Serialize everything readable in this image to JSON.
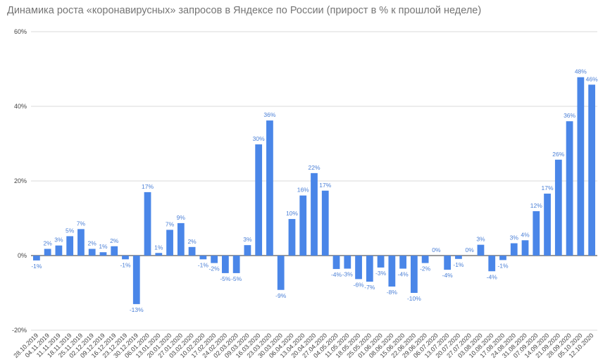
{
  "chart_data": {
    "type": "bar",
    "title": "Динамика роста «коронавирусных» запросов в Яндексе по России (прирост в % к прошлой неделе)",
    "xlabel": "",
    "ylabel": "",
    "ylim": [
      -20,
      60
    ],
    "yticks": [
      -20,
      0,
      20,
      40,
      60
    ],
    "ytick_labels": [
      "-20%",
      "0%",
      "20%",
      "40%",
      "60%"
    ],
    "grid": true,
    "bar_color": "#4a86e8",
    "label_color": "#4a7fd6",
    "categories": [
      "28.10.2019",
      "04.11.2019",
      "11.11.2019",
      "18.11.2019",
      "25.11.2019",
      "02.12.2019",
      "09.12.2019",
      "16.12.2019",
      "23.12.2019",
      "30.12.2019",
      "06.01.2020",
      "13.01.2020",
      "20.01.2020",
      "27.01.2020",
      "03.02.2020",
      "10.02.2020",
      "17.02.2020",
      "24.02.2020",
      "02.03.2020",
      "09.03.2020",
      "16.03.2020",
      "23.03.2020",
      "30.03.2020",
      "06.04.2020",
      "13.04.2020",
      "20.04.2020",
      "27.04.2020",
      "04.05.2020",
      "11.05.2020",
      "18.05.2020",
      "25.05.2020",
      "01.06.2020",
      "08.06.2020",
      "15.06.2020",
      "22.06.2020",
      "29.06.2020",
      "06.07.2020",
      "13.07.2020",
      "20.07.2020",
      "27.07.2020",
      "03.08.2020",
      "10.08.2020",
      "17.08.2020",
      "24.08.2020",
      "31.08.2020",
      "07.09.2020",
      "14.09.2020",
      "21.09.2020",
      "28.09.2020",
      "05.10.2020",
      "12.10.2020"
    ],
    "values": [
      -1.3,
      1.8,
      2.7,
      5.2,
      7.1,
      1.8,
      0.9,
      2.5,
      -1.0,
      -13.0,
      17.0,
      0.7,
      6.9,
      8.7,
      2.3,
      -1.0,
      -2.0,
      -4.7,
      -4.7,
      2.8,
      29.8,
      36.2,
      -9.2,
      9.8,
      16.1,
      22.1,
      17.4,
      -3.6,
      -3.5,
      -6.3,
      -7.0,
      -3.2,
      -8.3,
      -3.5,
      -10.0,
      -2.0,
      0,
      -3.8,
      -0.9,
      0,
      2.9,
      -4.2,
      -1.2,
      3.3,
      4.1,
      11.9,
      16.6,
      25.7,
      36.0,
      47.8,
      45.8
    ],
    "data_labels": [
      "-1%",
      "2%",
      "3%",
      "5%",
      "7%",
      "2%",
      "1%",
      "2%",
      "-1%",
      "-13%",
      "17%",
      "1%",
      "7%",
      "9%",
      "2%",
      "-1%",
      "-2%",
      "-5%",
      "-5%",
      "3%",
      "30%",
      "36%",
      "-9%",
      "10%",
      "16%",
      "22%",
      "17%",
      "-4%",
      "-3%",
      "-6%",
      "-7%",
      "-3%",
      "-8%",
      "-4%",
      "-10%",
      "-2%",
      "0%",
      "-4%",
      "-1%",
      "0%",
      "3%",
      "-4%",
      "-1%",
      "3%",
      "4%",
      "12%",
      "17%",
      "26%",
      "36%",
      "48%",
      "46%"
    ]
  }
}
